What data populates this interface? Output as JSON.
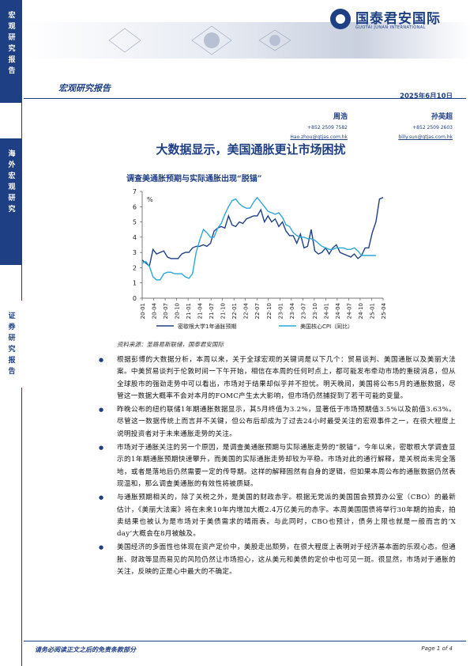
{
  "sidebar": {
    "label1": "宏观研究报告",
    "label2": "海外宏观研究",
    "label3": "证券研究报告"
  },
  "header": {
    "logo_cn": "国泰君安国际",
    "logo_en": "GUOTAI JUNAN INTERNATIONAL",
    "report_type": "宏观研究报告",
    "date": "2025年6月10日"
  },
  "authors": [
    {
      "name": "周浩",
      "phone": "+852 2509 7582",
      "email": "Hao.zhou@gtjas.com.hk"
    },
    {
      "name": "孙英超",
      "phone": "+852 2509 2603",
      "email": "billy.sun@gtjas.com.hk"
    }
  ],
  "title": "大数据显示，美国通胀更让市场困扰",
  "chart_title": "调查美通胀预期与实际通胀出现“脱锚”",
  "chart_data": {
    "type": "line",
    "ylabel": "%",
    "ylim": [
      0,
      7
    ],
    "yticks": [
      0,
      1,
      2,
      3,
      4,
      5,
      6,
      7
    ],
    "xticks": [
      "20-01",
      "20-04",
      "20-07",
      "20-10",
      "21-01",
      "21-04",
      "21-07",
      "21-10",
      "22-01",
      "22-04",
      "22-07",
      "22-10",
      "23-01",
      "23-04",
      "23-07",
      "23-10",
      "24-01",
      "24-04",
      "24-07",
      "24-10",
      "25-01",
      "25-04"
    ],
    "series": [
      {
        "name": "密歇根大学1年通胀预期",
        "color": "#1f3f84",
        "values": [
          2.5,
          2.3,
          2.1,
          3.2,
          2.9,
          3.0,
          3.1,
          2.7,
          2.6,
          2.6,
          2.6,
          2.9,
          3.0,
          3.0,
          3.3,
          3.4,
          3.4,
          3.5,
          3.4,
          3.6,
          4.4,
          4.6,
          4.7,
          4.6,
          5.4,
          4.8,
          4.7,
          5.0,
          4.9,
          5.2,
          5.3,
          5.4,
          5.4,
          5.8,
          5.0,
          5.4,
          5.0,
          5.2,
          4.7,
          5.0,
          4.4,
          4.1,
          4.1,
          3.6,
          4.2,
          3.3,
          3.4,
          4.5,
          3.1,
          2.9,
          3.0,
          3.3,
          2.9,
          3.3,
          3.5,
          3.0,
          2.9,
          2.8,
          2.7,
          2.9,
          2.6,
          2.8,
          3.3,
          3.3,
          4.3,
          5.0,
          6.5,
          6.6
        ]
      },
      {
        "name": "美国核心CPI（同比）",
        "color": "#2aa7dc",
        "values": [
          2.3,
          2.4,
          2.1,
          1.4,
          1.2,
          1.2,
          1.6,
          1.7,
          1.7,
          1.6,
          1.6,
          1.6,
          1.4,
          1.3,
          1.6,
          3.0,
          3.8,
          4.5,
          4.3,
          4.0,
          4.0,
          4.6,
          4.9,
          5.5,
          6.0,
          6.4,
          6.5,
          6.2,
          6.0,
          5.9,
          5.9,
          6.3,
          6.6,
          6.3,
          6.0,
          5.7,
          5.6,
          5.5,
          5.6,
          5.3,
          4.8,
          4.7,
          4.3,
          4.1,
          4.0,
          4.0,
          3.9,
          3.9,
          3.8,
          3.6,
          3.4,
          3.3,
          3.2,
          3.2,
          3.3,
          3.3,
          3.3,
          3.2,
          3.2,
          3.3,
          3.1,
          2.8,
          2.8,
          2.8,
          2.8,
          2.8
        ]
      }
    ]
  },
  "source": "资料来源：圣路易斯联储，国泰君安国际",
  "bullets": [
    "根据彭博的大数据分析，本周以来，关于全球宏观的关键词是以下几个：贸易谈判、美国通胀以及美丽大法案。中美贸易谈判于伦敦时间一下午开始，相信在本周的任何时点上，都可能发布牵动市场的重磅消息，但从全球股市的强劲走势中可以看出，市场对于结果却似乎并不担忧。明天晚间，美国将公布5月的通胀数据，尽管这一数据大概率不会对本月的FOMC产生太大影响，但市场仍然捕捉到了若干可能的变量。",
    "昨晚公布的纽约联储1年期通胀数据显示，其5月终值为3.2%，显著低于市场预期值3.5%以及前值3.63%。尽管这一数据传统上而言并不关键，但公布后却成为了过去24小时最受关注的宏观事件之一，在很大程度上说明投资者对于未来通胀走势的关注。",
    "市场对于通胀关注的另一个原因，是调查美通胀预期与实际通胀走势的“脱锚”，今年以来，密歇根大学调查显示的1年期通胀预期快速攀升，而美国的实际通胀走势却较为平稳。市场对此的通行解释，是关税尚未完全落地，或者是落地后仍然需要一定的传导期。这样的解释固然有自身的逻辑，但如果本周公布的通胀数据仍然表现温和，那么调查美通胀的有效性将被质疑。",
    "与通胀预期相关的，除了关税之外，是美国的财政赤字。根据无党派的美国国会预算办公室（CBO）的最新估计，《美丽大法案》将在未来10年内增加大概2.4万亿美元的赤字。本周美国国债将举行30年期的拍卖，拍卖结果也被认为是市场对于美债需求的晴雨表。与此同时，CBO也预计，债务上限也就是一般而言的‘X day’大概会在8月被触及。",
    "美国经济的多面性也体现在资产定价中，美股走出颓势，在很大程度上表明对于经济基本面的乐观心态。但通胀、财政等显而易见的风险仍然让市场担心，这从美元和美债的定价中也可见一斑。很显然，市场对于通胀的关注，反映的正是心中最大的不确定。"
  ],
  "footer": {
    "disclaimer": "请务必阅读正文之后的免责条款部分",
    "page": "Page 1 of 4"
  }
}
